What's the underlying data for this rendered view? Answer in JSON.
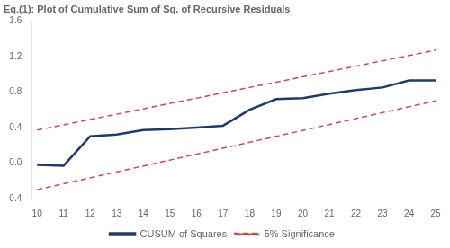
{
  "chart_data": {
    "type": "line",
    "title": "Eq.(1): Plot of Cumulative Sum of Sq. of Recursive Residuals",
    "series": [
      {
        "name": "CUSUM of Squares",
        "color": "#1F3B6E",
        "line_style": "solid",
        "x": [
          10,
          11,
          12,
          13,
          14,
          15,
          16,
          17,
          18,
          19,
          20,
          21,
          22,
          23,
          24,
          25
        ],
        "values": [
          -0.02,
          -0.03,
          0.3,
          0.32,
          0.37,
          0.38,
          0.4,
          0.42,
          0.6,
          0.72,
          0.73,
          0.78,
          0.82,
          0.85,
          0.93,
          0.93
        ]
      },
      {
        "name": "5% Significance",
        "color": "#C0504D",
        "line_style": "dashed",
        "x": [
          10,
          25
        ],
        "values": [
          0.37,
          1.27
        ]
      },
      {
        "name": "5% Significance",
        "color": "#C0504D",
        "line_style": "dashed",
        "x": [
          10,
          25
        ],
        "values": [
          -0.3,
          0.7
        ]
      }
    ],
    "xlim": [
      9.8,
      25.2
    ],
    "xticks": [
      10,
      11,
      12,
      13,
      14,
      15,
      16,
      17,
      18,
      19,
      20,
      21,
      22,
      23,
      24,
      25
    ],
    "ylim": [
      -0.4,
      1.6
    ],
    "yticks": [
      -0.4,
      {
        "value": 0,
        "label": "0.0"
      },
      0.4,
      0.8,
      1.2,
      1.6
    ],
    "grid": false,
    "legend": "bottom"
  }
}
